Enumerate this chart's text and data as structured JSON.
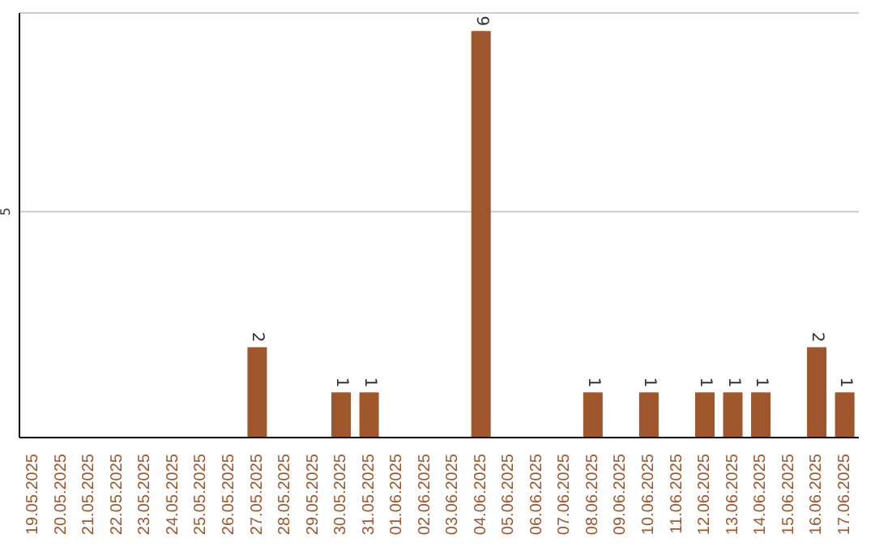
{
  "chart_data": {
    "type": "bar",
    "categories": [
      "19.05.2025",
      "20.05.2025",
      "21.05.2025",
      "22.05.2025",
      "23.05.2025",
      "24.05.2025",
      "25.05.2025",
      "26.05.2025",
      "27.05.2025",
      "28.05.2025",
      "29.05.2025",
      "30.05.2025",
      "31.05.2025",
      "01.06.2025",
      "02.06.2025",
      "03.06.2025",
      "04.06.2025",
      "05.06.2025",
      "06.06.2025",
      "07.06.2025",
      "08.06.2025",
      "09.06.2025",
      "10.06.2025",
      "11.06.2025",
      "12.06.2025",
      "13.06.2025",
      "14.06.2025",
      "15.06.2025",
      "16.06.2025",
      "17.06.2025"
    ],
    "values": [
      0,
      0,
      0,
      0,
      0,
      0,
      0,
      0,
      2,
      0,
      0,
      1,
      1,
      0,
      0,
      0,
      9,
      0,
      0,
      0,
      1,
      0,
      1,
      0,
      1,
      1,
      1,
      0,
      2,
      1
    ],
    "value_labels": [
      null,
      null,
      null,
      null,
      null,
      null,
      null,
      null,
      "2",
      null,
      null,
      "1",
      "1",
      null,
      null,
      null,
      "9",
      null,
      null,
      null,
      "1",
      null,
      "1",
      null,
      "1",
      "1",
      "1",
      null,
      "2",
      "1"
    ],
    "color": "#a0562c",
    "ylim": [
      0,
      9.4
    ],
    "yticks": [
      5
    ],
    "grid": "y"
  }
}
